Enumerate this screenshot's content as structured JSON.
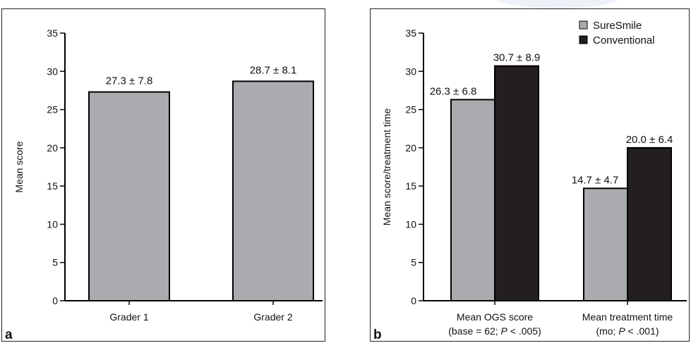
{
  "colors": {
    "suresmile": "#a9abae",
    "conventional": "#231f20",
    "axis": "#000000"
  },
  "chart_data": [
    {
      "type": "bar",
      "panel_label": "a",
      "ylabel": "Mean score",
      "xlabel": "",
      "ylim": [
        0,
        35
      ],
      "yticks": [
        0,
        5,
        10,
        15,
        20,
        25,
        30,
        35
      ],
      "categories": [
        "Grader 1",
        "Grader 2"
      ],
      "values": [
        27.3,
        28.7
      ],
      "labels": [
        "27.3 ± 7.8",
        "28.7 ± 8.1"
      ],
      "grid": false
    },
    {
      "type": "bar",
      "panel_label": "b",
      "ylabel": "Mean score/treatment time",
      "xlabel": "",
      "ylim": [
        0,
        35
      ],
      "yticks": [
        0,
        5,
        10,
        15,
        20,
        25,
        30,
        35
      ],
      "categories": [
        {
          "line1": "Mean OGS score",
          "line2_pre": "(base = 62; ",
          "p": "P",
          "line2_post": " < .005)"
        },
        {
          "line1": "Mean treatment time",
          "line2_pre": "(mo; ",
          "p": "P",
          "line2_post": " < .001)"
        }
      ],
      "series": [
        {
          "name": "SureSmile",
          "values": [
            26.3,
            14.7
          ],
          "labels": [
            "26.3 ± 6.8",
            "14.7 ± 4.7"
          ]
        },
        {
          "name": "Conventional",
          "values": [
            30.7,
            20.0
          ],
          "labels": [
            "30.7 ± 8.9",
            "20.0 ± 6.4"
          ]
        }
      ],
      "legend": "top-right",
      "grid": false
    }
  ]
}
